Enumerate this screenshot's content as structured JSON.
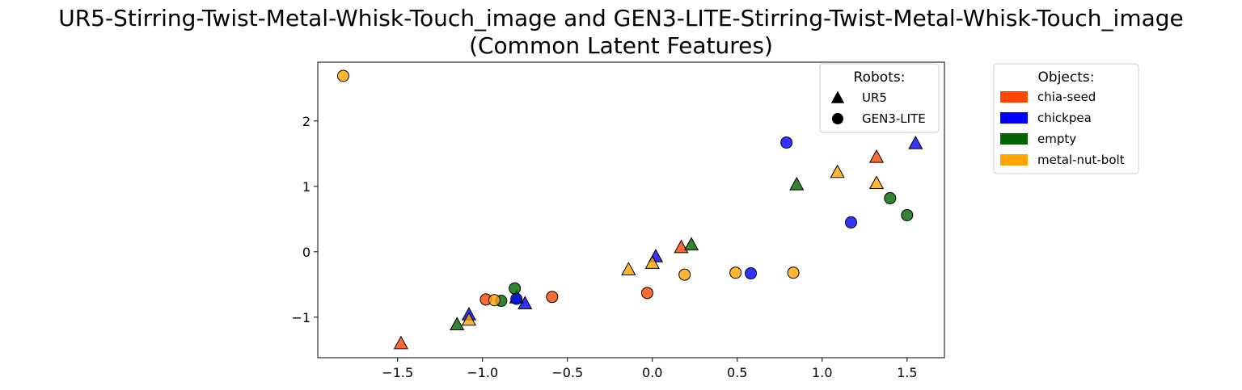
{
  "chart_data": {
    "type": "scatter",
    "title_line1": "UR5-Stirring-Twist-Metal-Whisk-Touch_image and GEN3-LITE-Stirring-Twist-Metal-Whisk-Touch_image",
    "title_line2": "(Common Latent Features)",
    "xlabel": "",
    "ylabel": "",
    "xlim": [
      -1.97,
      1.72
    ],
    "ylim": [
      -1.62,
      2.9
    ],
    "xticks": [
      -1.5,
      -1.0,
      -0.5,
      0.0,
      0.5,
      1.0,
      1.5
    ],
    "xtick_labels": [
      "−1.5",
      "−1.0",
      "−0.5",
      "0.0",
      "0.5",
      "1.0",
      "1.5"
    ],
    "yticks": [
      -1,
      0,
      1,
      2
    ],
    "ytick_labels": [
      "−1",
      "0",
      "1",
      "2"
    ],
    "grid": false,
    "robots_legend": {
      "title": "Robots:",
      "placement": "upper-right-inside",
      "entries": [
        {
          "label": "UR5",
          "marker": "triangle"
        },
        {
          "label": "GEN3-LITE",
          "marker": "circle"
        }
      ]
    },
    "objects_legend": {
      "title": "Objects:",
      "placement": "outside-right",
      "entries": [
        {
          "label": "chia-seed",
          "color": "#ff4500"
        },
        {
          "label": "chickpea",
          "color": "#0000ff"
        },
        {
          "label": "empty",
          "color": "#006400"
        },
        {
          "label": "metal-nut-bolt",
          "color": "#ffa500"
        }
      ]
    },
    "points": [
      {
        "robot": "UR5",
        "object": "chia-seed",
        "x": -1.48,
        "y": -1.4
      },
      {
        "robot": "UR5",
        "object": "chia-seed",
        "x": 0.17,
        "y": 0.07
      },
      {
        "robot": "UR5",
        "object": "chia-seed",
        "x": 1.32,
        "y": 1.45
      },
      {
        "robot": "UR5",
        "object": "chickpea",
        "x": -1.08,
        "y": -0.96
      },
      {
        "robot": "UR5",
        "object": "chickpea",
        "x": -0.75,
        "y": -0.79
      },
      {
        "robot": "UR5",
        "object": "chickpea",
        "x": 0.02,
        "y": -0.07
      },
      {
        "robot": "UR5",
        "object": "chickpea",
        "x": 1.55,
        "y": 1.66
      },
      {
        "robot": "UR5",
        "object": "empty",
        "x": -1.15,
        "y": -1.11
      },
      {
        "robot": "UR5",
        "object": "empty",
        "x": -0.8,
        "y": -0.7
      },
      {
        "robot": "UR5",
        "object": "empty",
        "x": 0.23,
        "y": 0.11
      },
      {
        "robot": "UR5",
        "object": "empty",
        "x": 0.85,
        "y": 1.03
      },
      {
        "robot": "UR5",
        "object": "metal-nut-bolt",
        "x": -1.08,
        "y": -1.04
      },
      {
        "robot": "UR5",
        "object": "metal-nut-bolt",
        "x": -0.14,
        "y": -0.27
      },
      {
        "robot": "UR5",
        "object": "metal-nut-bolt",
        "x": 0.0,
        "y": -0.17
      },
      {
        "robot": "UR5",
        "object": "metal-nut-bolt",
        "x": 1.09,
        "y": 1.22
      },
      {
        "robot": "UR5",
        "object": "metal-nut-bolt",
        "x": 1.32,
        "y": 1.05
      },
      {
        "robot": "GEN3-LITE",
        "object": "chia-seed",
        "x": -0.98,
        "y": -0.73
      },
      {
        "robot": "GEN3-LITE",
        "object": "chia-seed",
        "x": -0.59,
        "y": -0.69
      },
      {
        "robot": "GEN3-LITE",
        "object": "chia-seed",
        "x": -0.03,
        "y": -0.63
      },
      {
        "robot": "GEN3-LITE",
        "object": "chickpea",
        "x": -0.8,
        "y": -0.72
      },
      {
        "robot": "GEN3-LITE",
        "object": "chickpea",
        "x": 0.58,
        "y": -0.33
      },
      {
        "robot": "GEN3-LITE",
        "object": "chickpea",
        "x": 0.79,
        "y": 1.67
      },
      {
        "robot": "GEN3-LITE",
        "object": "chickpea",
        "x": 1.17,
        "y": 0.45
      },
      {
        "robot": "GEN3-LITE",
        "object": "empty",
        "x": -0.89,
        "y": -0.75
      },
      {
        "robot": "GEN3-LITE",
        "object": "empty",
        "x": -0.81,
        "y": -0.56
      },
      {
        "robot": "GEN3-LITE",
        "object": "empty",
        "x": 1.4,
        "y": 0.82
      },
      {
        "robot": "GEN3-LITE",
        "object": "empty",
        "x": 1.5,
        "y": 0.56
      },
      {
        "robot": "GEN3-LITE",
        "object": "metal-nut-bolt",
        "x": -1.82,
        "y": 2.69
      },
      {
        "robot": "GEN3-LITE",
        "object": "metal-nut-bolt",
        "x": -0.93,
        "y": -0.74
      },
      {
        "robot": "GEN3-LITE",
        "object": "metal-nut-bolt",
        "x": 0.19,
        "y": -0.35
      },
      {
        "robot": "GEN3-LITE",
        "object": "metal-nut-bolt",
        "x": 0.49,
        "y": -0.32
      },
      {
        "robot": "GEN3-LITE",
        "object": "metal-nut-bolt",
        "x": 0.83,
        "y": -0.32
      }
    ]
  }
}
